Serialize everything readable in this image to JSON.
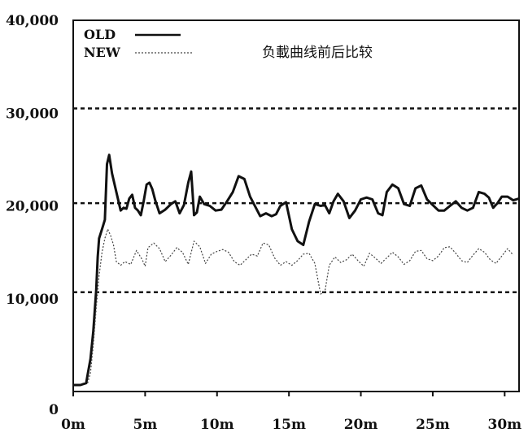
{
  "chart_data": {
    "type": "line",
    "title": "负載曲线前后比较",
    "xlabel": "",
    "ylabel": "",
    "xlim": [
      0,
      31
    ],
    "ylim": [
      0,
      40000
    ],
    "x_ticks": [
      0,
      5,
      10,
      15,
      20,
      25,
      30
    ],
    "x_tick_labels": [
      "0m",
      "5m",
      "10m",
      "15m",
      "20m",
      "25m",
      "30m"
    ],
    "y_ticks": [
      0,
      10000,
      20000,
      30000,
      40000
    ],
    "y_tick_labels": [
      "0",
      "10,000",
      "20,000",
      "30,000",
      "40,000"
    ],
    "reference_lines": [
      10700,
      20300,
      30500
    ],
    "grid": false,
    "legend_position": "top-left",
    "series": [
      {
        "name": "OLD",
        "color": "#111111",
        "style": "solid",
        "x": [
          0,
          0.5,
          0.9,
          1.0,
          1.2,
          1.4,
          1.6,
          1.7,
          1.8,
          2.0,
          2.2,
          2.35,
          2.5,
          2.7,
          3.0,
          3.3,
          3.5,
          3.7,
          3.9,
          4.1,
          4.3,
          4.5,
          4.7,
          4.9,
          5.1,
          5.3,
          5.5,
          5.7,
          6.0,
          6.4,
          6.8,
          7.1,
          7.4,
          7.7,
          8.0,
          8.2,
          8.4,
          8.6,
          8.8,
          9.1,
          9.5,
          9.9,
          10.3,
          10.7,
          11.1,
          11.5,
          11.9,
          12.3,
          12.7,
          13.0,
          13.4,
          13.8,
          14.1,
          14.4,
          14.8,
          15.2,
          15.6,
          16.0,
          16.4,
          16.8,
          17.2,
          17.5,
          17.8,
          18.1,
          18.4,
          18.8,
          19.2,
          19.6,
          20.0,
          20.4,
          20.8,
          21.2,
          21.5,
          21.8,
          22.2,
          22.6,
          23.0,
          23.4,
          23.8,
          24.2,
          24.6,
          25.0,
          25.4,
          25.8,
          26.2,
          26.6,
          27.0,
          27.4,
          27.8,
          28.2,
          28.6,
          28.9,
          29.2,
          29.5,
          29.8,
          30.2,
          30.6,
          31.0
        ],
        "y": [
          700,
          700,
          900,
          1800,
          3500,
          6500,
          11000,
          14500,
          16500,
          17500,
          18500,
          24500,
          25500,
          23500,
          21500,
          19500,
          19800,
          19700,
          20800,
          21200,
          19800,
          19500,
          19000,
          20500,
          22300,
          22500,
          21800,
          20600,
          19200,
          19600,
          20200,
          20500,
          19200,
          20100,
          22500,
          23700,
          19000,
          19300,
          21000,
          20200,
          20000,
          19500,
          19600,
          20500,
          21500,
          23200,
          22900,
          21000,
          19800,
          18900,
          19200,
          18900,
          19100,
          20000,
          20400,
          17500,
          16200,
          15800,
          18300,
          20200,
          20000,
          20100,
          19200,
          20500,
          21300,
          20500,
          18700,
          19500,
          20700,
          20900,
          20700,
          19200,
          19000,
          21500,
          22300,
          21900,
          20200,
          20000,
          21900,
          22200,
          20700,
          20100,
          19500,
          19500,
          20000,
          20500,
          19800,
          19500,
          19800,
          21500,
          21300,
          20900,
          19800,
          20300,
          21000,
          21000,
          20600,
          20800
        ],
        "markers": false
      },
      {
        "name": "NEW",
        "color": "#444444",
        "style": "dotted",
        "x": [
          1.0,
          1.2,
          1.4,
          1.6,
          1.8,
          2.0,
          2.2,
          2.4,
          2.6,
          2.8,
          3.0,
          3.3,
          3.6,
          4.0,
          4.4,
          4.8,
          5.0,
          5.2,
          5.6,
          6.0,
          6.4,
          6.8,
          7.2,
          7.6,
          8.0,
          8.4,
          8.8,
          9.2,
          9.6,
          10.0,
          10.4,
          10.8,
          11.2,
          11.6,
          12.0,
          12.4,
          12.8,
          13.2,
          13.6,
          14.0,
          14.4,
          14.8,
          15.2,
          15.6,
          16.0,
          16.4,
          16.8,
          17.2,
          17.5,
          17.8,
          18.2,
          18.6,
          19.0,
          19.4,
          19.8,
          20.2,
          20.6,
          21.0,
          21.4,
          21.8,
          22.2,
          22.6,
          23.0,
          23.4,
          23.8,
          24.2,
          24.6,
          25.0,
          25.4,
          25.8,
          26.2,
          26.6,
          27.0,
          27.4,
          27.8,
          28.2,
          28.6,
          29.0,
          29.4,
          29.8,
          30.2,
          30.6
        ],
        "y": [
          900,
          2000,
          5000,
          9000,
          12500,
          15000,
          16500,
          17500,
          16800,
          15800,
          14000,
          13600,
          14000,
          13700,
          15200,
          14200,
          13500,
          15500,
          16000,
          15400,
          14000,
          14700,
          15500,
          15000,
          13700,
          16200,
          15600,
          13800,
          14800,
          15100,
          15300,
          15000,
          14000,
          13600,
          14200,
          14800,
          14600,
          16000,
          15800,
          14400,
          13600,
          14000,
          13600,
          14100,
          14800,
          14900,
          13800,
          10500,
          10800,
          13600,
          14500,
          13900,
          14200,
          14800,
          14100,
          13500,
          14900,
          14400,
          13800,
          14400,
          15000,
          14500,
          13700,
          14100,
          15100,
          15200,
          14300,
          14100,
          14600,
          15500,
          15600,
          14900,
          14100,
          13900,
          14700,
          15400,
          15000,
          14200,
          13800,
          14600,
          15400,
          14700
        ]
      }
    ]
  }
}
